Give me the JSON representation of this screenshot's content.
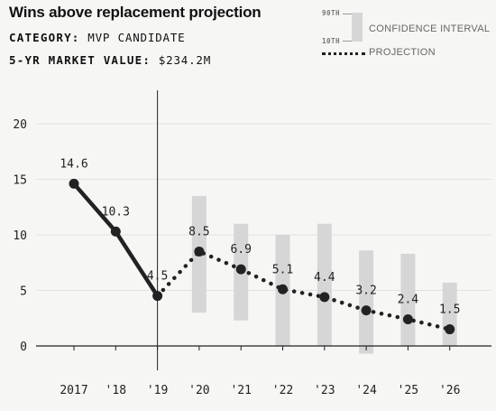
{
  "header": {
    "title": "Wins above replacement projection",
    "category_key": "CATEGORY:",
    "category_value": "MVP CANDIDATE",
    "market_key": "5-YR MARKET VALUE:",
    "market_value": "$234.2M"
  },
  "legend": {
    "pct90": "90TH",
    "pct10": "10TH",
    "ci_label": "CONFIDENCE INTERVAL",
    "projection_label": "PROJECTION"
  },
  "colors": {
    "line": "#222222",
    "interval": "#d6d6d6",
    "grid": "#e2e2e2",
    "axis": "#222222",
    "background": "#f6f6f4"
  },
  "chart_data": {
    "type": "line",
    "title": "Wins above replacement projection",
    "xlabel": "",
    "ylabel": "",
    "ylim": [
      0,
      20
    ],
    "yticks": [
      0,
      5,
      10,
      15,
      20
    ],
    "grid": true,
    "categories": [
      "2017",
      "'18",
      "'19",
      "'20",
      "'21",
      "'22",
      "'23",
      "'24",
      "'25",
      "'26"
    ],
    "series": [
      {
        "name": "",
        "style": "solid",
        "values": [
          14.6,
          10.3,
          4.5,
          null,
          null,
          null,
          null,
          null,
          null,
          null
        ]
      },
      {
        "name": "PROJECTION",
        "style": "dotted",
        "values": [
          null,
          null,
          4.5,
          8.5,
          6.9,
          5.1,
          4.4,
          3.2,
          2.4,
          1.5
        ]
      }
    ],
    "data_labels": [
      "14.6",
      "10.3",
      "4.5",
      "8.5",
      "6.9",
      "5.1",
      "4.4",
      "3.2",
      "2.4",
      "1.5"
    ],
    "confidence_interval": {
      "name": "CONFIDENCE INTERVAL",
      "low": [
        null,
        null,
        null,
        3.0,
        2.3,
        0.0,
        0.0,
        -0.7,
        0.0,
        0.0
      ],
      "high": [
        null,
        null,
        null,
        13.5,
        11.0,
        10.0,
        11.0,
        8.6,
        8.3,
        5.7
      ]
    },
    "divider_after": "'19"
  }
}
